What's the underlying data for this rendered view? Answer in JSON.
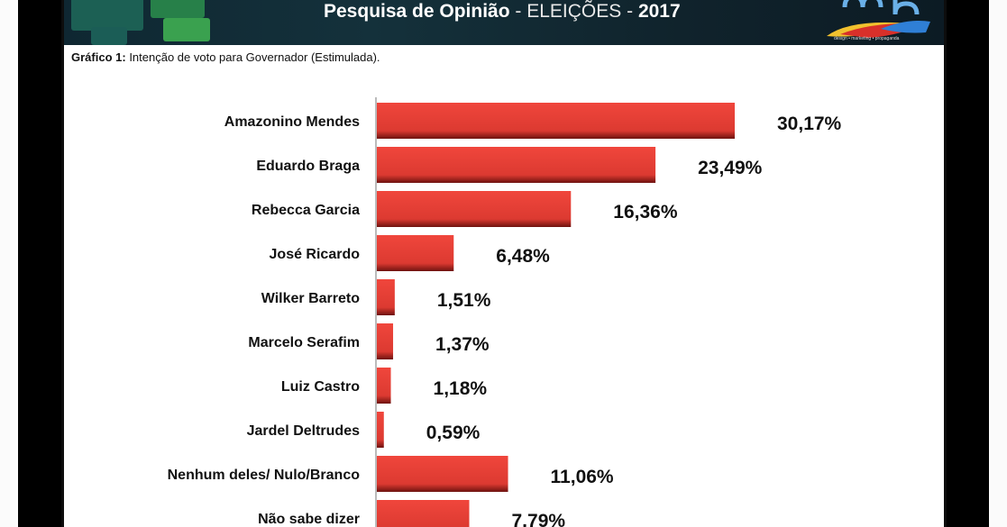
{
  "header": {
    "title_main": "Pesquisa de Opinião",
    "title_sep": "- ELEIÇÕES -",
    "title_year": "2017",
    "logo_tagline": "design • marketing • propaganda"
  },
  "caption": {
    "prefix": "Gráfico 1:",
    "text": "Intenção de voto para Governador (Estimulada)."
  },
  "colors": {
    "bar": "#e23b33",
    "bar_shadow": "#7a1612"
  },
  "chart_data": {
    "type": "bar",
    "orientation": "horizontal",
    "categories": [
      "Amazonino Mendes",
      "Eduardo Braga",
      "Rebecca Garcia",
      "José Ricardo",
      "Wilker Barreto",
      "Marcelo Serafim",
      "Luiz Castro",
      "Jardel Deltrudes",
      "Nenhum deles/ Nulo/Branco",
      "Não sabe dizer"
    ],
    "values": [
      30.17,
      23.49,
      16.36,
      6.48,
      1.51,
      1.37,
      1.18,
      0.59,
      11.06,
      7.79
    ],
    "value_labels": [
      "30,17%",
      "23,49%",
      "16,36%",
      "6,48%",
      "1,51%",
      "1,37%",
      "1,18%",
      "0,59%",
      "11,06%",
      "7,79%"
    ],
    "title": "Intenção de voto para Governador (Estimulada).",
    "xlabel": "",
    "ylabel": "",
    "xlim": [
      0,
      30.17
    ],
    "grid": false,
    "legend": "none"
  }
}
